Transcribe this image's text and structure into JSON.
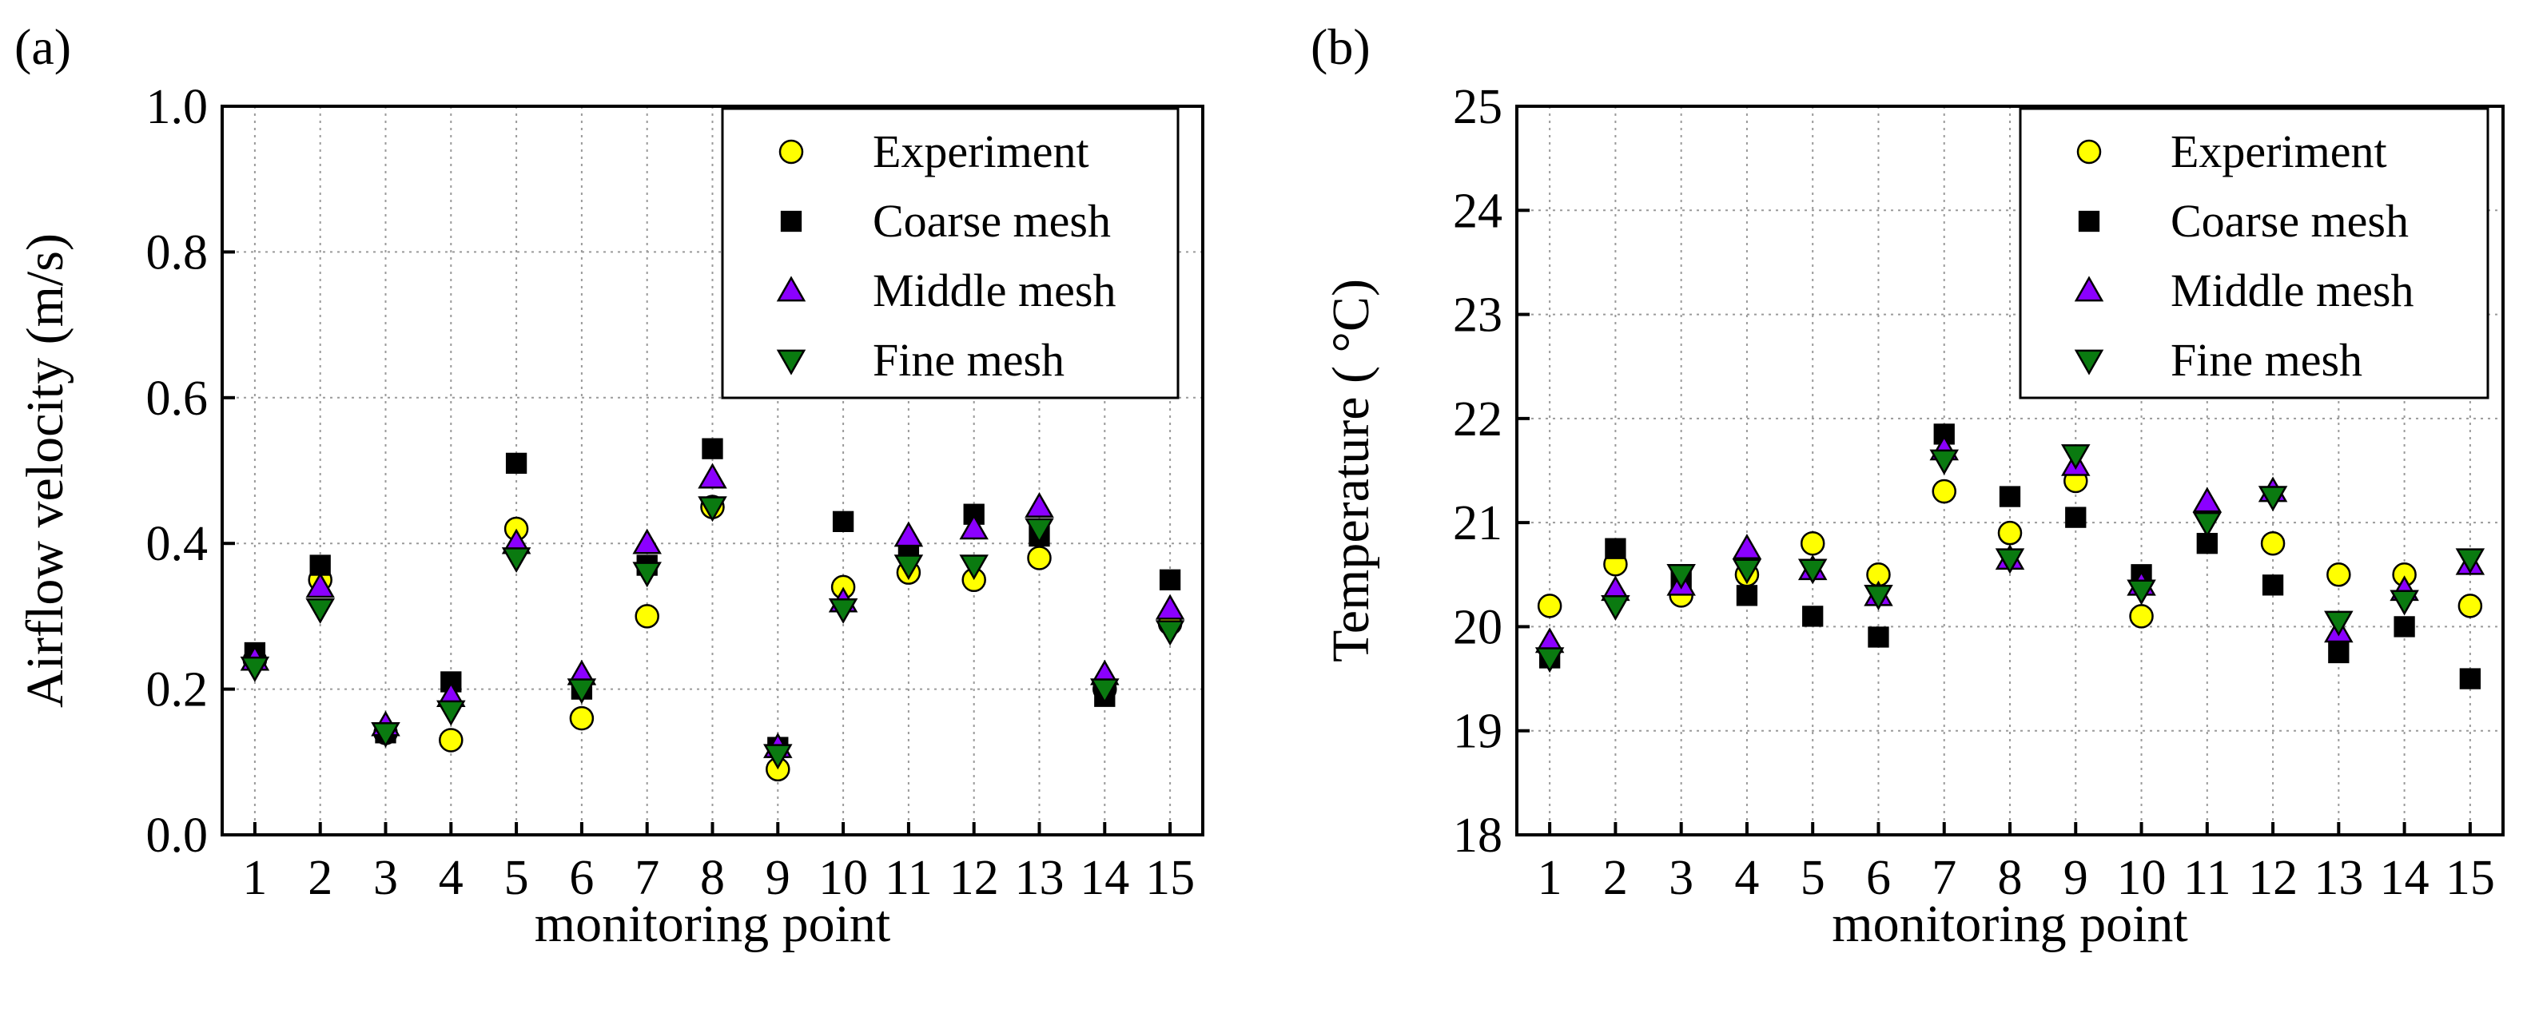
{
  "colors": {
    "Experiment": "#ffff00",
    "Coarse mesh": "#000000",
    "Middle mesh": "#8b00ff",
    "Fine mesh": "#0a7a10"
  },
  "markers": {
    "Experiment": "circle",
    "Coarse mesh": "square",
    "Middle mesh": "triangle-up",
    "Fine mesh": "triangle-down"
  },
  "chart_data": [
    {
      "type": "scatter",
      "panel_label": "(a)",
      "xlabel": "monitoring point",
      "ylabel": "Airflow velocity (m/s)",
      "x": [
        1,
        2,
        3,
        4,
        5,
        6,
        7,
        8,
        9,
        10,
        11,
        12,
        13,
        14,
        15
      ],
      "xlim": [
        0.5,
        15.5
      ],
      "ylim": [
        0.0,
        1.0
      ],
      "yticks": [
        "0.0",
        "0.2",
        "0.4",
        "0.6",
        "0.8",
        "1.0"
      ],
      "grid": true,
      "legend_position": "top-right",
      "series": [
        {
          "name": "Experiment",
          "values": [
            0.24,
            0.35,
            0.14,
            0.13,
            0.42,
            0.16,
            0.3,
            0.45,
            0.09,
            0.34,
            0.36,
            0.35,
            0.38,
            0.2,
            0.29
          ]
        },
        {
          "name": "Coarse mesh",
          "values": [
            0.25,
            0.37,
            0.14,
            0.21,
            0.51,
            0.2,
            0.37,
            0.53,
            0.12,
            0.43,
            0.39,
            0.44,
            0.41,
            0.19,
            0.35
          ]
        },
        {
          "name": "Middle mesh",
          "values": [
            0.24,
            0.34,
            0.15,
            0.19,
            0.4,
            0.22,
            0.4,
            0.49,
            0.12,
            0.32,
            0.41,
            0.42,
            0.45,
            0.22,
            0.31
          ]
        },
        {
          "name": "Fine mesh",
          "values": [
            0.23,
            0.31,
            0.14,
            0.17,
            0.38,
            0.2,
            0.36,
            0.45,
            0.11,
            0.31,
            0.37,
            0.37,
            0.42,
            0.2,
            0.28
          ]
        }
      ]
    },
    {
      "type": "scatter",
      "panel_label": "(b)",
      "xlabel": "monitoring point",
      "ylabel": "Temperature ( °C)",
      "x": [
        1,
        2,
        3,
        4,
        5,
        6,
        7,
        8,
        9,
        10,
        11,
        12,
        13,
        14,
        15
      ],
      "xlim": [
        0.5,
        15.5
      ],
      "ylim": [
        18,
        25
      ],
      "yticks": [
        "18",
        "19",
        "20",
        "21",
        "22",
        "23",
        "24",
        "25"
      ],
      "grid": true,
      "legend_position": "top-right",
      "series": [
        {
          "name": "Experiment",
          "values": [
            20.2,
            20.6,
            20.3,
            20.5,
            20.8,
            20.5,
            21.3,
            20.9,
            21.4,
            20.1,
            21.1,
            20.8,
            20.5,
            20.5,
            20.2
          ]
        },
        {
          "name": "Coarse mesh",
          "values": [
            19.7,
            20.75,
            20.45,
            20.3,
            20.1,
            19.9,
            21.85,
            21.25,
            21.05,
            20.5,
            20.8,
            20.4,
            19.75,
            20.0,
            19.5
          ]
        },
        {
          "name": "Middle mesh",
          "values": [
            19.85,
            20.35,
            20.4,
            20.75,
            20.55,
            20.3,
            21.7,
            20.65,
            21.55,
            20.4,
            21.2,
            21.3,
            19.95,
            20.35,
            20.6
          ]
        },
        {
          "name": "Fine mesh",
          "values": [
            19.7,
            20.2,
            20.5,
            20.55,
            20.55,
            20.3,
            21.6,
            20.65,
            21.65,
            20.35,
            21.0,
            21.25,
            20.05,
            20.25,
            20.65
          ]
        }
      ]
    }
  ]
}
